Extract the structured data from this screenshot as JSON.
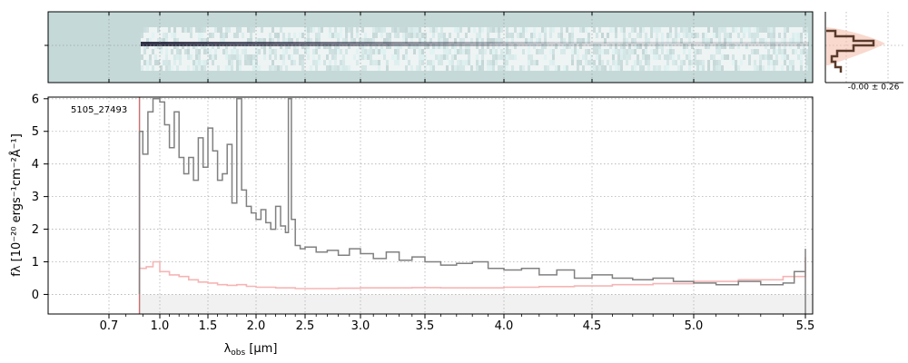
{
  "chart_data": [
    {
      "type": "heatmap",
      "panel": "2d-spectrum",
      "x_ticks": [
        "0.7",
        "1.0",
        "1.5",
        "2.0",
        "2.5",
        "3.0",
        "3.5",
        "4.0",
        "4.5",
        "5.0",
        "5.5"
      ],
      "background_color": "#c5dad8",
      "trace_color": "#1b1b33",
      "grid": true
    },
    {
      "type": "line",
      "panel": "1d-spectrum",
      "object_id": "5105_27493",
      "xlabel": "λobs [μm]",
      "xlabel_base": "λ",
      "xlabel_sub": "obs",
      "xlabel_unit": " [μm]",
      "ylabel": "fλ [10⁻²⁰ ergs⁻¹cm⁻²Å⁻¹]",
      "xlim": [
        0.6,
        5.52
      ],
      "ylim": [
        -0.6,
        6.05
      ],
      "x_ticks": [
        0.7,
        1.0,
        1.5,
        2.0,
        2.5,
        3.0,
        3.5,
        4.0,
        4.5,
        5.0,
        5.5
      ],
      "x_tick_labels": [
        "0.7",
        "1.0",
        "1.5",
        "2.0",
        "2.5",
        "3.0",
        "3.5",
        "4.0",
        "4.5",
        "5.0",
        "5.5"
      ],
      "y_ticks": [
        0,
        1,
        2,
        3,
        4,
        5,
        6
      ],
      "y_tick_labels": [
        "0",
        "1",
        "2",
        "3",
        "4",
        "5",
        "6"
      ],
      "grid": true,
      "series": [
        {
          "role": "flux",
          "color": "#808080",
          "x": [
            0.88,
            0.9,
            0.93,
            0.96,
            1.0,
            1.05,
            1.1,
            1.15,
            1.2,
            1.25,
            1.3,
            1.35,
            1.4,
            1.45,
            1.5,
            1.55,
            1.6,
            1.65,
            1.7,
            1.75,
            1.8,
            1.85,
            1.9,
            1.95,
            2.0,
            2.05,
            2.1,
            2.15,
            2.2,
            2.25,
            2.3,
            2.33,
            2.36,
            2.4,
            2.45,
            2.5,
            2.6,
            2.7,
            2.8,
            2.9,
            3.0,
            3.1,
            3.2,
            3.3,
            3.4,
            3.5,
            3.6,
            3.7,
            3.8,
            3.9,
            4.0,
            4.1,
            4.2,
            4.3,
            4.4,
            4.5,
            4.6,
            4.7,
            4.8,
            4.9,
            5.0,
            5.1,
            5.2,
            5.3,
            5.4,
            5.45,
            5.5
          ],
          "y": [
            5.0,
            4.3,
            5.6,
            6.0,
            5.9,
            5.2,
            4.5,
            5.6,
            4.2,
            3.7,
            4.2,
            3.5,
            4.8,
            3.9,
            5.1,
            4.4,
            3.5,
            3.7,
            4.6,
            2.8,
            6.0,
            3.2,
            2.7,
            2.5,
            2.3,
            2.6,
            2.2,
            2.0,
            2.7,
            2.1,
            1.9,
            6.0,
            2.3,
            1.5,
            1.4,
            1.45,
            1.3,
            1.35,
            1.2,
            1.4,
            1.25,
            1.1,
            1.3,
            1.05,
            1.15,
            1.0,
            0.9,
            0.95,
            1.0,
            0.8,
            0.75,
            0.8,
            0.6,
            0.75,
            0.5,
            0.6,
            0.5,
            0.45,
            0.5,
            0.4,
            0.35,
            0.3,
            0.4,
            0.3,
            0.35,
            0.7,
            1.4
          ]
        },
        {
          "role": "error",
          "color": "#f5b5b5",
          "x": [
            0.88,
            0.92,
            0.96,
            1.0,
            1.1,
            1.2,
            1.3,
            1.4,
            1.5,
            1.6,
            1.7,
            1.8,
            1.9,
            2.0,
            2.2,
            2.4,
            2.6,
            2.8,
            3.0,
            3.2,
            3.4,
            3.6,
            3.8,
            4.0,
            4.2,
            4.4,
            4.6,
            4.8,
            5.0,
            5.2,
            5.4,
            5.5
          ],
          "y": [
            0.8,
            0.85,
            1.0,
            0.7,
            0.6,
            0.55,
            0.45,
            0.38,
            0.35,
            0.3,
            0.28,
            0.3,
            0.25,
            0.22,
            0.2,
            0.18,
            0.18,
            0.19,
            0.2,
            0.2,
            0.21,
            0.2,
            0.2,
            0.22,
            0.24,
            0.26,
            0.3,
            0.33,
            0.4,
            0.45,
            0.55,
            1.15
          ]
        }
      ]
    },
    {
      "type": "line",
      "panel": "spatial-profile",
      "annotation": "-0.00 ± 0.26",
      "series": [
        {
          "role": "profile",
          "color": "#5a3a2a"
        },
        {
          "role": "model",
          "color": "#f4b9a6"
        }
      ]
    }
  ]
}
